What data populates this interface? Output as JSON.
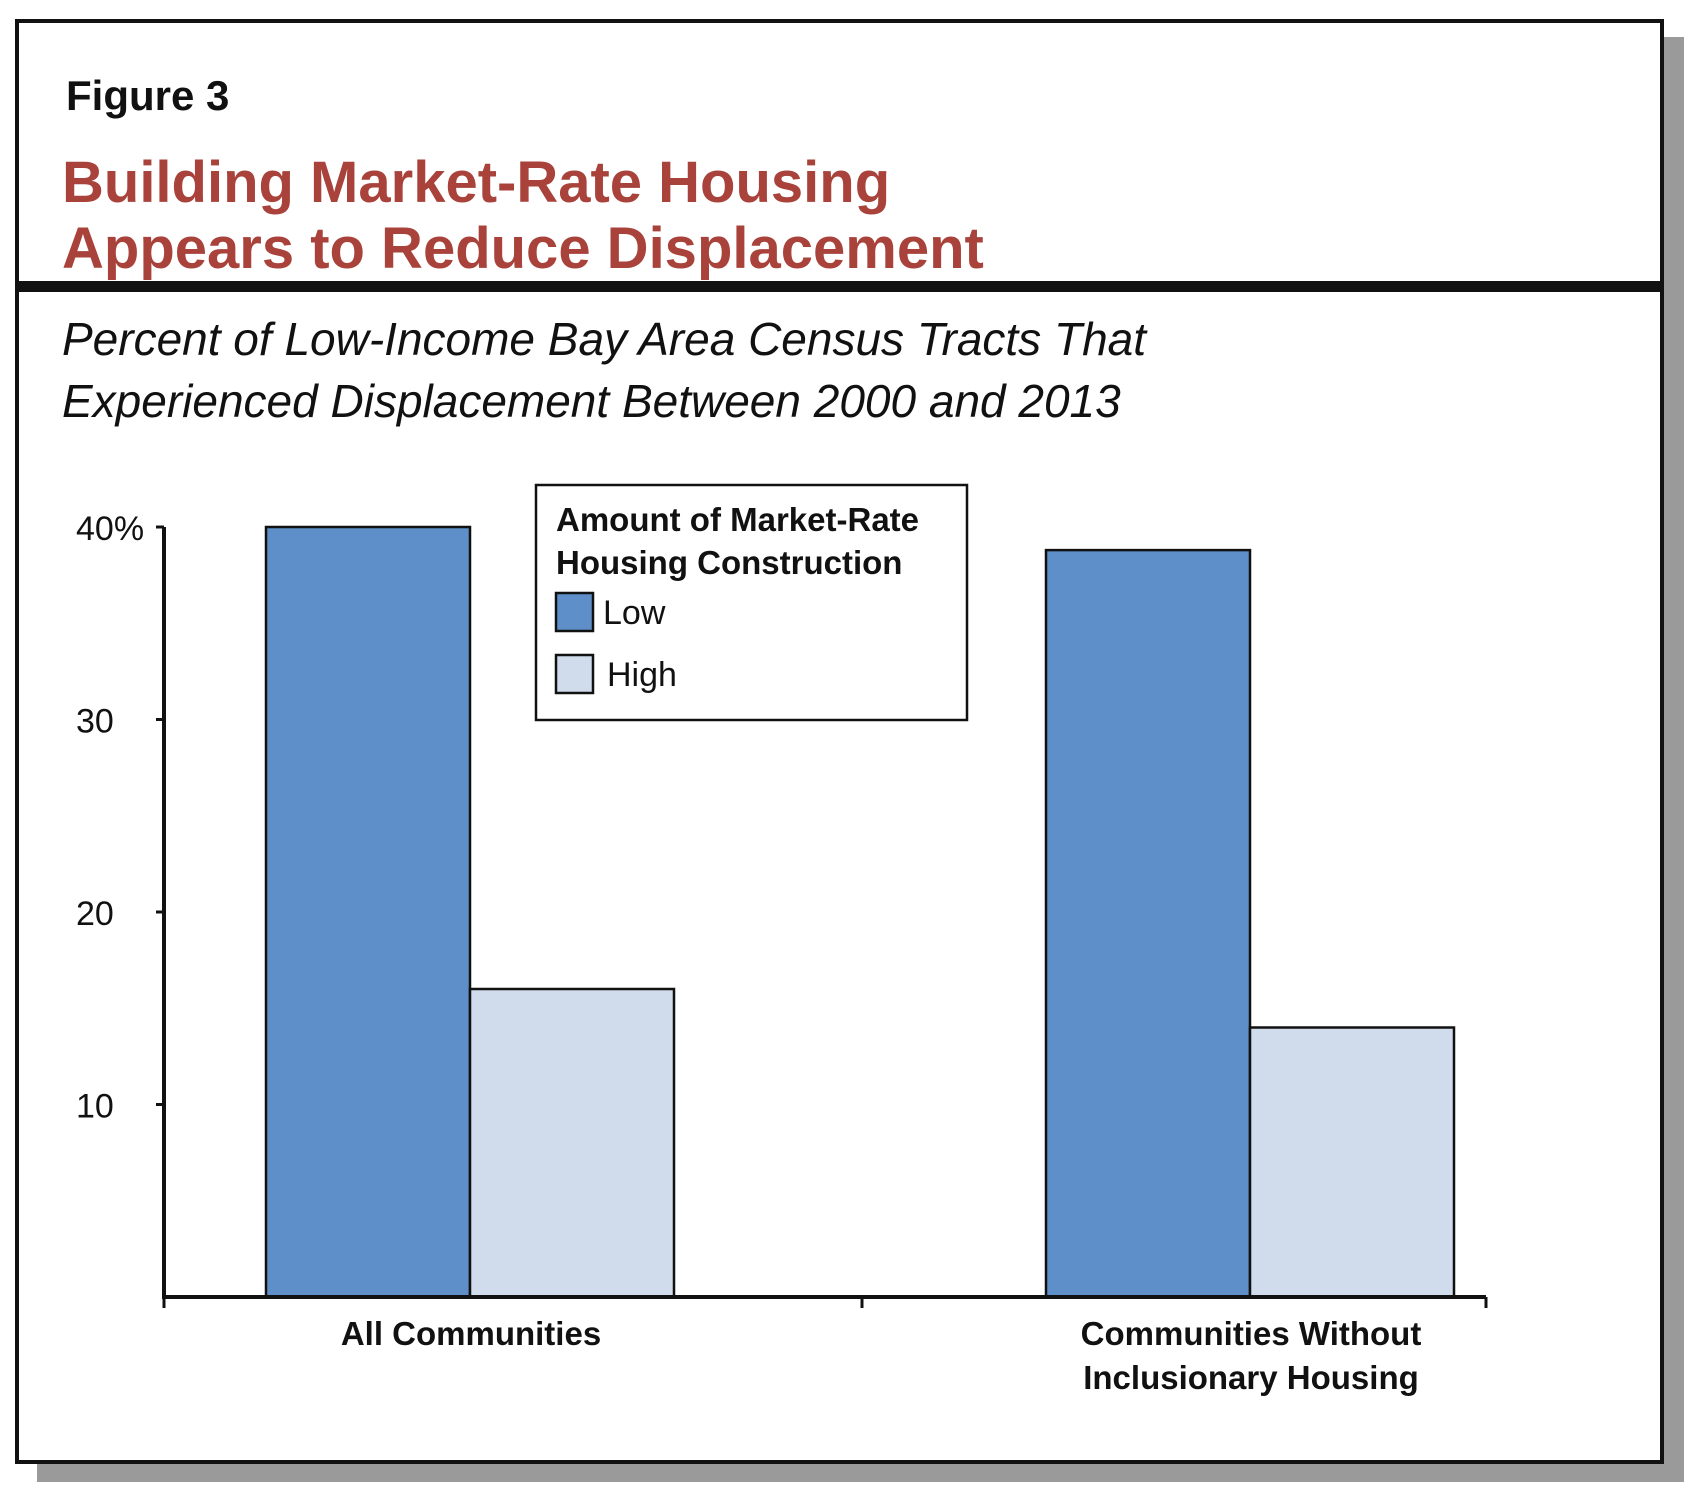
{
  "figure_label": "Figure 3",
  "title_line1": "Building Market-Rate Housing",
  "title_line2": "Appears to Reduce Displacement",
  "subtitle_line1": "Percent of Low-Income Bay Area Census Tracts That",
  "subtitle_line2": "Experienced Displacement Between 2000 and 2013",
  "colors": {
    "title": "#a8423a",
    "low": "#5e8fc8",
    "high": "#d0dbeb"
  },
  "chart_data": {
    "type": "bar",
    "categories": [
      [
        "All Communities"
      ],
      [
        "Communities Without",
        "Inclusionary Housing"
      ]
    ],
    "series": [
      {
        "name": "Low",
        "values": [
          40,
          38.8
        ],
        "color": "#5e8fc8"
      },
      {
        "name": "High",
        "values": [
          16,
          14
        ],
        "color": "#d0dbeb"
      }
    ],
    "ylim": [
      0,
      40
    ],
    "yticks": [
      10,
      20,
      30,
      40
    ],
    "ytick_labels": [
      "10",
      "20",
      "30",
      "40%"
    ],
    "legend_title": [
      "Amount of Market-Rate",
      "Housing Construction"
    ],
    "legend_position": "top-center",
    "grid": false
  }
}
